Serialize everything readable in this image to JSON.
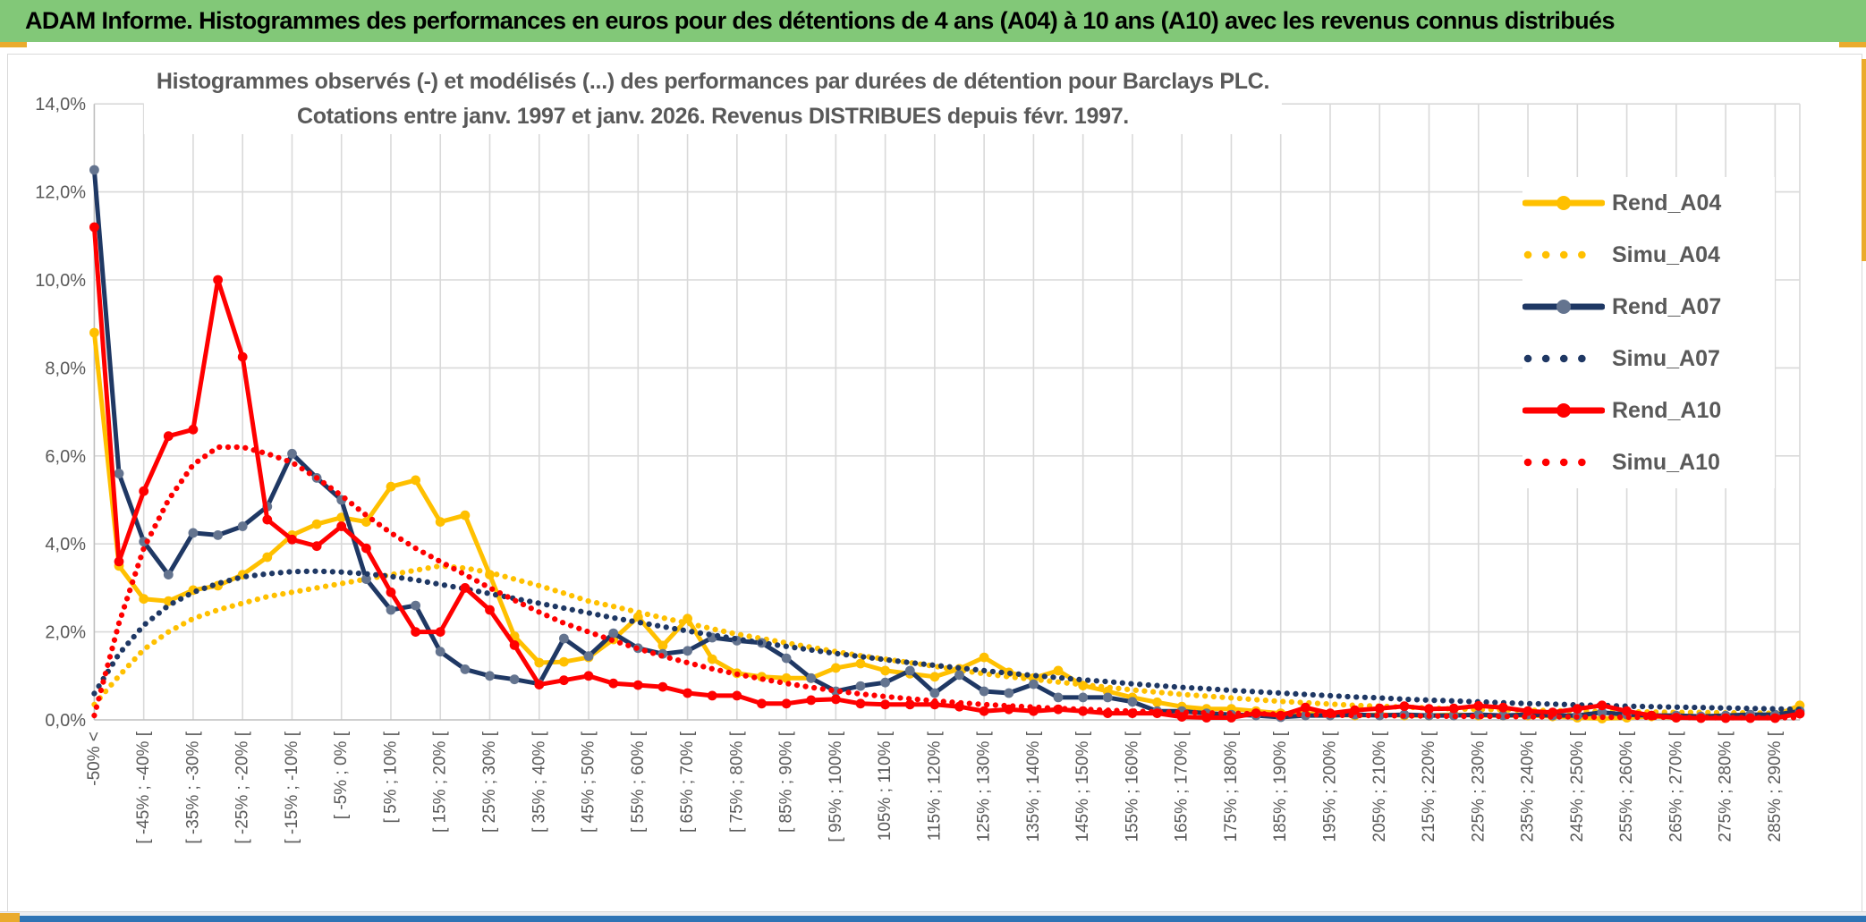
{
  "header": {
    "title": "ADAM Informe. Histogrammes des performances en euros pour des détentions de 4 ans (A04) à 10 ans (A10) avec les revenus connus distribués",
    "bg_color": "#82C878"
  },
  "chart": {
    "title_line1": "Histogrammes observés (-) et modélisés (...) des performances par durées de détention pour Barclays PLC.",
    "title_line2": "Cotations entre janv. 1997 et janv. 2026. Revenus DISTRIBUES depuis févr. 1997."
  },
  "accents": {
    "gold_color": "#EAAB2D",
    "bottom_bar_color": "#2E74B5",
    "grid_color": "#D9D9D9",
    "axis_color": "#BFBFBF",
    "text_color": "#595959"
  },
  "chart_data": {
    "type": "line",
    "title": "Histogrammes observés (-) et modélisés (...) des performances par durées de détention pour Barclays PLC. Cotations entre janv. 1997 et janv. 2026. Revenus DISTRIBUES depuis févr. 1997.",
    "ylim": [
      0,
      14
    ],
    "grid": true,
    "legend_position": "right",
    "y_ticks": [
      "0,0%",
      "2,0%",
      "4,0%",
      "6,0%",
      "8,0%",
      "10,0%",
      "12,0%",
      "14,0%"
    ],
    "x_ticks_every_other_point": true,
    "x_ticks": [
      "-50% <",
      "[ -45% ; -40% [",
      "[ -35% ; -30% [",
      "[ -25% ; -20% [",
      "[ -15% ; -10% [",
      "[ -5% ; 0% [",
      "[ 5% ; 10% [",
      "[ 15% ; 20% [",
      "[ 25% ; 30% [",
      "[ 35% ; 40% [",
      "[ 45% ; 50% [",
      "[ 55% ; 60% [",
      "[ 65% ; 70% [",
      "[ 75% ; 80% [",
      "[ 85% ; 90% [",
      "[ 95% ; 100% [",
      "105% ; 110% [",
      "115% ; 120% [",
      "125% ; 130% [",
      "135% ; 140% [",
      "145% ; 150% [",
      "155% ; 160% [",
      "165% ; 170% [",
      "175% ; 180% [",
      "185% ; 190% [",
      "195% ; 200% [",
      "205% ; 210% [",
      "215% ; 220% [",
      "225% ; 230% [",
      "235% ; 240% [",
      "245% ; 250% [",
      "255% ; 260% [",
      "265% ; 270% [",
      "275% ; 280% [",
      "285% ; 290% ["
    ],
    "series": [
      {
        "name": "Rend_A04",
        "style": "solid",
        "color": "#FFC000",
        "marker": "#FFC000",
        "values": [
          8.8,
          3.5,
          2.75,
          2.7,
          2.95,
          3.05,
          3.3,
          3.7,
          4.2,
          4.45,
          4.6,
          4.5,
          5.3,
          5.45,
          4.5,
          4.65,
          3.3,
          1.9,
          1.3,
          1.32,
          1.42,
          1.83,
          2.34,
          1.69,
          2.3,
          1.38,
          1.06,
          0.98,
          0.95,
          0.95,
          1.18,
          1.28,
          1.12,
          1.05,
          0.98,
          1.16,
          1.42,
          1.08,
          0.95,
          1.12,
          0.78,
          0.65,
          0.51,
          0.4,
          0.3,
          0.25,
          0.25,
          0.2,
          0.15,
          0.15,
          0.12,
          0.1,
          0.12,
          0.1,
          0.1,
          0.12,
          0.1,
          0.1,
          0.1,
          0.08,
          0.05,
          0.03,
          0.05,
          0.08,
          0.05,
          0.05,
          0.08,
          0.05,
          0.1,
          0.33
        ]
      },
      {
        "name": "Simu_A04",
        "style": "dotted",
        "color": "#FFC000",
        "values": [
          0.35,
          1.0,
          1.6,
          2.0,
          2.3,
          2.5,
          2.65,
          2.8,
          2.9,
          3.0,
          3.1,
          3.2,
          3.3,
          3.4,
          3.5,
          3.45,
          3.35,
          3.2,
          3.05,
          2.88,
          2.7,
          2.58,
          2.45,
          2.32,
          2.2,
          2.07,
          1.95,
          1.85,
          1.75,
          1.65,
          1.55,
          1.46,
          1.38,
          1.3,
          1.22,
          1.13,
          1.05,
          0.98,
          0.92,
          0.86,
          0.8,
          0.74,
          0.68,
          0.63,
          0.58,
          0.54,
          0.5,
          0.46,
          0.42,
          0.39,
          0.36,
          0.33,
          0.31,
          0.29,
          0.27,
          0.25,
          0.24,
          0.23,
          0.22,
          0.21,
          0.2,
          0.19,
          0.18,
          0.18,
          0.17,
          0.17,
          0.16,
          0.16,
          0.15,
          0.15
        ]
      },
      {
        "name": "Rend_A07",
        "style": "solid",
        "color": "#1F3864",
        "marker": "#64748F",
        "values": [
          12.5,
          5.6,
          4.05,
          3.3,
          4.25,
          4.2,
          4.4,
          4.85,
          6.05,
          5.5,
          5.0,
          3.2,
          2.5,
          2.6,
          1.55,
          1.15,
          1.0,
          0.92,
          0.82,
          1.85,
          1.45,
          1.97,
          1.63,
          1.5,
          1.57,
          1.87,
          1.8,
          1.75,
          1.4,
          0.95,
          0.65,
          0.77,
          0.85,
          1.12,
          0.61,
          1.02,
          0.65,
          0.61,
          0.81,
          0.51,
          0.51,
          0.51,
          0.41,
          0.2,
          0.2,
          0.15,
          0.12,
          0.1,
          0.06,
          0.1,
          0.1,
          0.12,
          0.1,
          0.12,
          0.1,
          0.1,
          0.12,
          0.1,
          0.12,
          0.1,
          0.1,
          0.17,
          0.12,
          0.1,
          0.1,
          0.08,
          0.1,
          0.12,
          0.12,
          0.2
        ]
      },
      {
        "name": "Simu_A07",
        "style": "dotted",
        "color": "#1F3864",
        "values": [
          0.6,
          1.5,
          2.15,
          2.6,
          2.9,
          3.1,
          3.25,
          3.32,
          3.37,
          3.38,
          3.36,
          3.32,
          3.26,
          3.18,
          3.08,
          2.98,
          2.87,
          2.76,
          2.65,
          2.54,
          2.43,
          2.32,
          2.22,
          2.12,
          2.02,
          1.93,
          1.84,
          1.75,
          1.67,
          1.59,
          1.51,
          1.44,
          1.37,
          1.3,
          1.24,
          1.18,
          1.12,
          1.06,
          1.01,
          0.96,
          0.91,
          0.87,
          0.82,
          0.78,
          0.74,
          0.71,
          0.67,
          0.64,
          0.61,
          0.58,
          0.55,
          0.52,
          0.5,
          0.47,
          0.45,
          0.43,
          0.41,
          0.39,
          0.37,
          0.36,
          0.34,
          0.33,
          0.31,
          0.3,
          0.29,
          0.28,
          0.27,
          0.26,
          0.25,
          0.24
        ]
      },
      {
        "name": "Rend_A10",
        "style": "solid",
        "color": "#FF0000",
        "marker": "#FF0000",
        "values": [
          11.2,
          3.6,
          5.2,
          6.45,
          6.6,
          10.0,
          8.25,
          4.55,
          4.1,
          3.95,
          4.4,
          3.9,
          2.9,
          2.0,
          2.0,
          3.0,
          2.5,
          1.7,
          0.8,
          0.9,
          1.0,
          0.83,
          0.79,
          0.75,
          0.61,
          0.55,
          0.55,
          0.37,
          0.37,
          0.45,
          0.47,
          0.37,
          0.35,
          0.35,
          0.35,
          0.3,
          0.2,
          0.24,
          0.2,
          0.24,
          0.2,
          0.15,
          0.15,
          0.15,
          0.07,
          0.05,
          0.05,
          0.15,
          0.1,
          0.28,
          0.15,
          0.22,
          0.26,
          0.31,
          0.25,
          0.26,
          0.32,
          0.28,
          0.2,
          0.17,
          0.25,
          0.33,
          0.2,
          0.1,
          0.05,
          0.04,
          0.04,
          0.04,
          0.04,
          0.14
        ]
      },
      {
        "name": "Simu_A10",
        "style": "dotted",
        "color": "#FF0000",
        "values": [
          0.1,
          2.2,
          3.9,
          5.0,
          5.8,
          6.2,
          6.2,
          6.05,
          5.85,
          5.5,
          5.1,
          4.65,
          4.25,
          3.9,
          3.6,
          3.3,
          3.0,
          2.72,
          2.45,
          2.2,
          2.0,
          1.8,
          1.62,
          1.45,
          1.3,
          1.16,
          1.04,
          0.93,
          0.83,
          0.74,
          0.66,
          0.59,
          0.53,
          0.48,
          0.43,
          0.39,
          0.35,
          0.32,
          0.29,
          0.26,
          0.24,
          0.22,
          0.2,
          0.18,
          0.17,
          0.16,
          0.15,
          0.14,
          0.13,
          0.12,
          0.11,
          0.1,
          0.1,
          0.09,
          0.09,
          0.08,
          0.08,
          0.08,
          0.07,
          0.07,
          0.07,
          0.06,
          0.06,
          0.06,
          0.06,
          0.05,
          0.05,
          0.05,
          0.05,
          0.05
        ]
      }
    ]
  }
}
